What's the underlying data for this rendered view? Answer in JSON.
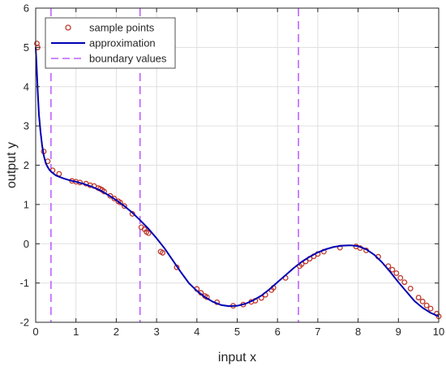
{
  "chart_data": {
    "type": "scatter",
    "title": "",
    "xlabel": "input x",
    "ylabel": "output y",
    "xlim": [
      0,
      10
    ],
    "ylim": [
      -2,
      6
    ],
    "xticks": [
      0,
      1,
      2,
      3,
      4,
      5,
      6,
      7,
      8,
      9,
      10
    ],
    "yticks": [
      -2,
      -1,
      0,
      1,
      2,
      3,
      4,
      5,
      6
    ],
    "grid": true,
    "legend_position": "top-left",
    "legend": [
      {
        "label": "sample points",
        "style": "marker"
      },
      {
        "label": "approximation",
        "style": "line"
      },
      {
        "label": "boundary values",
        "style": "dashed"
      }
    ],
    "colors": {
      "sample_edge": "#c0392b",
      "approximation": "#0000b3",
      "boundary": "#b040ff",
      "grid": "#e0e0e0"
    },
    "boundary_values": [
      0.38,
      2.59,
      6.52
    ],
    "approximation": {
      "x": [
        0.0,
        0.02,
        0.05,
        0.08,
        0.12,
        0.16,
        0.2,
        0.25,
        0.3,
        0.35,
        0.4,
        0.5,
        0.6,
        0.7,
        0.8,
        0.9,
        1.0,
        1.2,
        1.4,
        1.6,
        1.8,
        2.0,
        2.2,
        2.4,
        2.6,
        2.8,
        3.0,
        3.2,
        3.4,
        3.6,
        3.8,
        4.0,
        4.2,
        4.4,
        4.6,
        4.8,
        5.0,
        5.2,
        5.4,
        5.6,
        5.8,
        6.0,
        6.2,
        6.4,
        6.6,
        6.8,
        7.0,
        7.2,
        7.4,
        7.6,
        7.8,
        8.0,
        8.2,
        8.4,
        8.6,
        8.8,
        9.0,
        9.2,
        9.4,
        9.6,
        9.8,
        10.0
      ],
      "y": [
        5.0,
        4.6,
        3.9,
        3.3,
        2.85,
        2.5,
        2.25,
        2.05,
        1.95,
        1.87,
        1.82,
        1.74,
        1.7,
        1.66,
        1.63,
        1.6,
        1.58,
        1.52,
        1.45,
        1.36,
        1.24,
        1.11,
        0.96,
        0.79,
        0.59,
        0.38,
        0.14,
        -0.12,
        -0.42,
        -0.72,
        -1.0,
        -1.2,
        -1.36,
        -1.48,
        -1.56,
        -1.59,
        -1.58,
        -1.53,
        -1.44,
        -1.32,
        -1.16,
        -0.98,
        -0.8,
        -0.62,
        -0.46,
        -0.33,
        -0.22,
        -0.14,
        -0.08,
        -0.05,
        -0.04,
        -0.06,
        -0.14,
        -0.28,
        -0.48,
        -0.72,
        -0.98,
        -1.22,
        -1.46,
        -1.63,
        -1.76,
        -1.85
      ]
    },
    "sample_points": {
      "x": [
        0.03,
        0.05,
        0.2,
        0.3,
        0.42,
        0.58,
        0.9,
        1.0,
        1.1,
        1.25,
        1.35,
        1.45,
        1.55,
        1.6,
        1.65,
        1.7,
        1.85,
        1.95,
        2.05,
        2.1,
        2.2,
        2.4,
        2.62,
        2.7,
        2.75,
        2.8,
        3.1,
        3.15,
        3.5,
        4.0,
        4.1,
        4.2,
        4.25,
        4.5,
        4.9,
        5.15,
        5.35,
        5.45,
        5.6,
        5.7,
        5.85,
        5.9,
        6.2,
        6.55,
        6.6,
        6.7,
        6.8,
        6.9,
        7.0,
        7.15,
        7.55,
        7.95,
        8.05,
        8.2,
        8.5,
        8.75,
        8.85,
        8.95,
        9.05,
        9.15,
        9.3,
        9.5,
        9.6,
        9.7,
        9.8,
        9.95,
        10.0
      ],
      "y": [
        5.1,
        5.0,
        2.35,
        2.1,
        1.87,
        1.78,
        1.6,
        1.58,
        1.56,
        1.53,
        1.49,
        1.47,
        1.42,
        1.4,
        1.37,
        1.33,
        1.22,
        1.15,
        1.08,
        1.05,
        0.96,
        0.76,
        0.42,
        0.37,
        0.3,
        0.27,
        -0.2,
        -0.23,
        -0.6,
        -1.15,
        -1.25,
        -1.33,
        -1.36,
        -1.49,
        -1.58,
        -1.55,
        -1.48,
        -1.45,
        -1.38,
        -1.3,
        -1.18,
        -1.12,
        -0.87,
        -0.57,
        -0.52,
        -0.45,
        -0.38,
        -0.32,
        -0.26,
        -0.2,
        -0.1,
        -0.07,
        -0.11,
        -0.17,
        -0.33,
        -0.57,
        -0.66,
        -0.75,
        -0.87,
        -0.98,
        -1.14,
        -1.37,
        -1.47,
        -1.57,
        -1.65,
        -1.78,
        -1.85
      ]
    }
  }
}
